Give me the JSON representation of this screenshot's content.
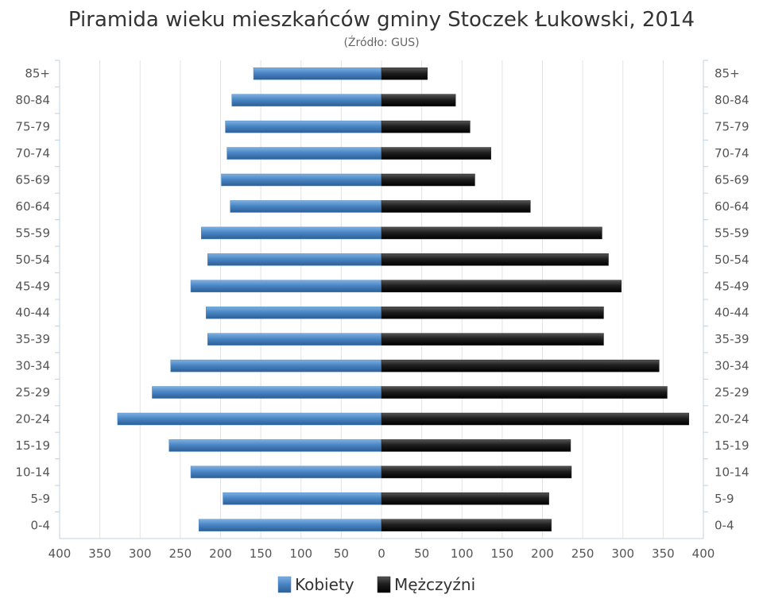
{
  "chart_data": {
    "type": "bar",
    "orientation": "horizontal",
    "title": "Piramida wieku mieszkańców gminy Stoczek Łukowski, 2014",
    "subtitle": "(Źródło: GUS)",
    "categories": [
      "85+",
      "80-84",
      "75-79",
      "70-74",
      "65-69",
      "60-64",
      "55-59",
      "50-54",
      "45-49",
      "40-44",
      "35-39",
      "30-34",
      "25-29",
      "20-24",
      "15-19",
      "10-14",
      "5-9",
      "0-4"
    ],
    "series": [
      {
        "name": "Kobiety",
        "color": "#4a86c5",
        "side": "left",
        "values": [
          159,
          186,
          194,
          192,
          199,
          188,
          224,
          216,
          237,
          218,
          216,
          262,
          285,
          328,
          264,
          237,
          197,
          227
        ]
      },
      {
        "name": "Mężczyźni",
        "color": "#1f1f1f",
        "side": "right",
        "values": [
          57,
          92,
          110,
          136,
          116,
          185,
          274,
          282,
          298,
          276,
          276,
          345,
          355,
          382,
          235,
          236,
          208,
          211
        ]
      }
    ],
    "x_ticks": [
      "400",
      "350",
      "300",
      "250",
      "200",
      "150",
      "100",
      "50",
      "0",
      "50",
      "100",
      "150",
      "200",
      "250",
      "300",
      "350",
      "400"
    ],
    "xlim": [
      -400,
      400
    ],
    "grid": true,
    "legend_position": "bottom-center"
  }
}
